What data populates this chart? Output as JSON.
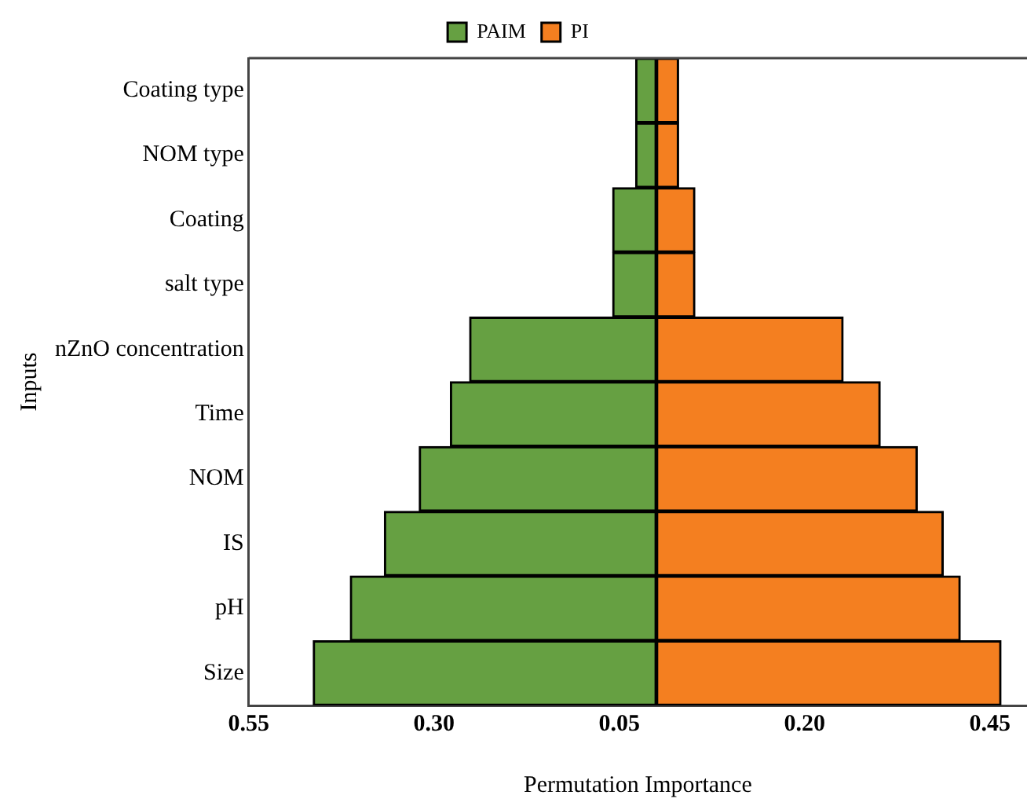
{
  "chart_data": {
    "type": "bar",
    "orientation": "horizontal",
    "stacked": true,
    "categories": [
      "Coating type",
      "NOM type",
      "Coating",
      "salt type",
      "nZnO concentration",
      "Time",
      "NOM",
      "IS",
      "pH",
      "Size"
    ],
    "series": [
      {
        "name": "PAIM",
        "color": "#66a042",
        "values": [
          -0.028,
          -0.028,
          -0.059,
          -0.059,
          -0.252,
          -0.278,
          -0.32,
          -0.367,
          -0.413,
          -0.463
        ]
      },
      {
        "name": "PI",
        "color": "#f47f20",
        "values": [
          0.03,
          0.03,
          0.052,
          0.052,
          0.252,
          0.302,
          0.352,
          0.387,
          0.41,
          0.465
        ]
      }
    ],
    "xlim": [
      -0.55,
      0.5
    ],
    "xticks": [
      {
        "value": -0.55,
        "label": "0.55"
      },
      {
        "value": -0.3,
        "label": "0.30"
      },
      {
        "value": -0.05,
        "label": "0.05"
      },
      {
        "value": 0.2,
        "label": "0.20"
      },
      {
        "value": 0.45,
        "label": "0.45"
      }
    ],
    "xlabel": "Permutation Importance",
    "ylabel": "Inputs",
    "legend": "top",
    "grid": false
  }
}
